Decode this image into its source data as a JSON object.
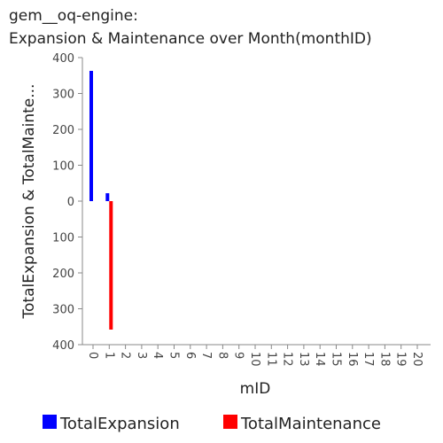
{
  "chart_data": {
    "type": "bar",
    "title_lines": [
      "gem__oq-engine:",
      "Expansion & Maintenance over Month(monthID)"
    ],
    "xlabel": "mID",
    "ylabel": "TotalExpansion & TotalMainte...",
    "x_ticks": [
      "0",
      "2",
      "4",
      "6",
      "8",
      "10",
      "12",
      "14",
      "16",
      "18",
      "20",
      "1",
      "3",
      "5",
      "7",
      "9",
      "11",
      "13",
      "15",
      "17",
      "19"
    ],
    "y_ticks": [
      "400",
      "300",
      "200",
      "100",
      "0",
      "100",
      "200",
      "300",
      "400"
    ],
    "ylim": [
      -400,
      400
    ],
    "x": [
      0,
      1
    ],
    "series": [
      {
        "name": "TotalExpansion",
        "color": "#0000ff",
        "direction": "up",
        "values": [
          363,
          22
        ]
      },
      {
        "name": "TotalMaintenance",
        "color": "#ff0000",
        "direction": "down",
        "values": [
          0,
          358
        ]
      }
    ],
    "legend_position": "bottom",
    "grid": false
  }
}
